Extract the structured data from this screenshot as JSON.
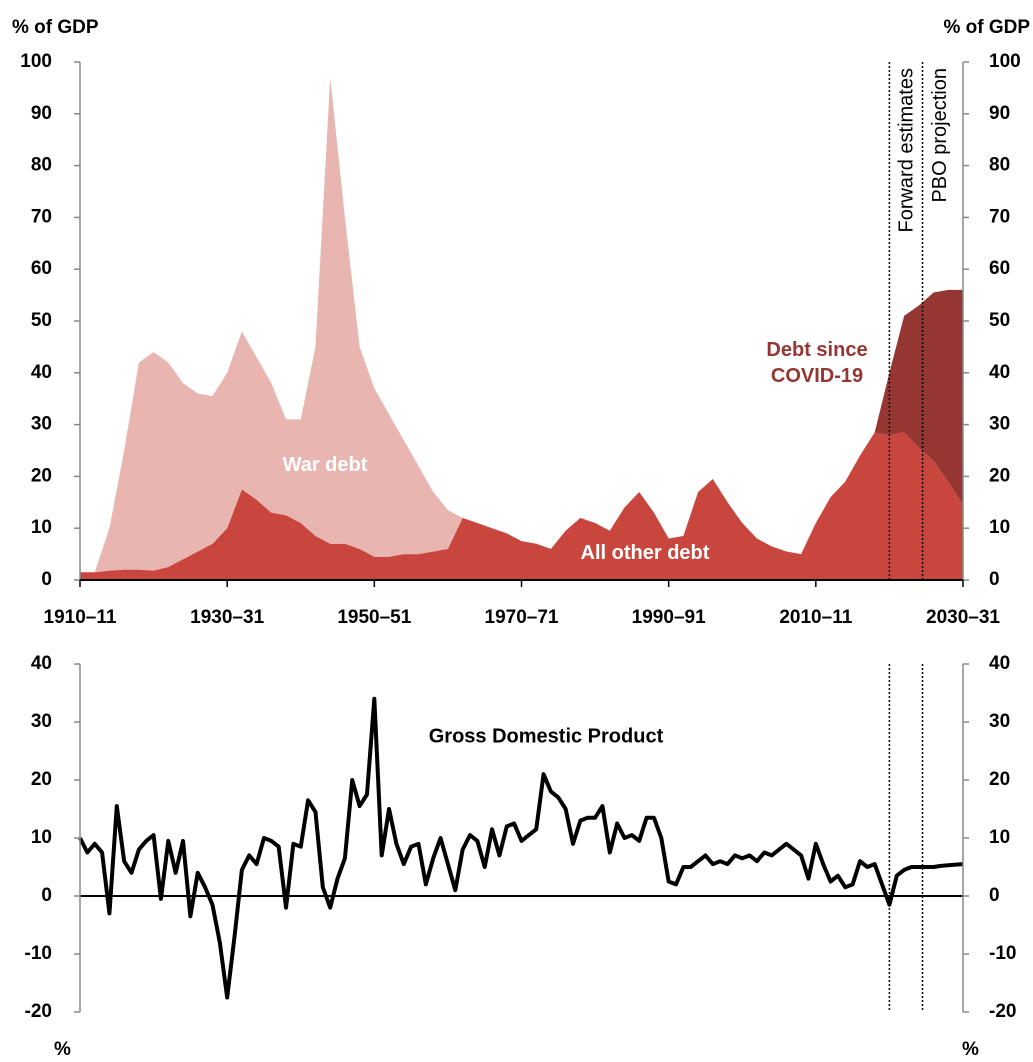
{
  "chart_data": [
    {
      "type": "area",
      "y_label": "% of GDP",
      "x": [
        1910,
        1912,
        1914,
        1916,
        1918,
        1920,
        1922,
        1924,
        1926,
        1928,
        1930,
        1932,
        1934,
        1936,
        1938,
        1940,
        1942,
        1944,
        1946,
        1948,
        1950,
        1952,
        1954,
        1956,
        1958,
        1960,
        1962,
        1964,
        1966,
        1968,
        1970,
        1972,
        1974,
        1976,
        1978,
        1980,
        1982,
        1984,
        1986,
        1988,
        1990,
        1992,
        1994,
        1996,
        1998,
        2000,
        2002,
        2004,
        2006,
        2008,
        2010,
        2012,
        2014,
        2016,
        2018,
        2020,
        2022,
        2024,
        2026,
        2028,
        2030
      ],
      "series": [
        {
          "name": "All other debt",
          "color": "#c8463e",
          "values": [
            1.5,
            1.5,
            1.8,
            2,
            2,
            1.8,
            2.5,
            4,
            5.5,
            7,
            10,
            17.5,
            15.5,
            13,
            12.5,
            11,
            8.5,
            7,
            7,
            6,
            4.5,
            4.5,
            5,
            5,
            5.5,
            6,
            12,
            11,
            10,
            9,
            7.5,
            7,
            6,
            9.5,
            12,
            11,
            9.5,
            14,
            17,
            13,
            8,
            8.5,
            17,
            19.5,
            15,
            11,
            8,
            6.5,
            5.5,
            5,
            11,
            16,
            19,
            24,
            28.5,
            28,
            28.5,
            25.5,
            23,
            19,
            14.5
          ]
        },
        {
          "name": "War debt",
          "color": "#e8b5b1",
          "values": [
            0,
            0,
            8.2,
            23,
            40,
            42.2,
            39.5,
            34,
            30.5,
            28.5,
            30,
            30.5,
            27.5,
            25,
            18.5,
            20,
            36.5,
            90,
            63,
            39,
            32.5,
            27.5,
            22,
            17,
            11.5,
            7.5,
            0,
            0,
            0,
            0,
            0,
            0,
            0,
            0,
            0,
            0,
            0,
            0,
            0,
            0,
            0,
            0,
            0,
            0,
            0,
            0,
            0,
            0,
            0,
            0,
            0,
            0,
            0,
            0,
            0,
            0,
            0,
            0,
            0,
            0,
            0
          ]
        },
        {
          "name": "Debt since COVID-19",
          "color": "#963632",
          "values": [
            0,
            0,
            0,
            0,
            0,
            0,
            0,
            0,
            0,
            0,
            0,
            0,
            0,
            0,
            0,
            0,
            0,
            0,
            0,
            0,
            0,
            0,
            0,
            0,
            0,
            0,
            0,
            0,
            0,
            0,
            0,
            0,
            0,
            0,
            0,
            0,
            0,
            0,
            0,
            0,
            0,
            0,
            0,
            0,
            0,
            0,
            0,
            0,
            0,
            0,
            0,
            0,
            0,
            0,
            0,
            12,
            22.5,
            27.5,
            32.5,
            37,
            41.5
          ]
        }
      ],
      "xlim": [
        1910,
        2030
      ],
      "xticks": [
        {
          "value": 1910,
          "label": "1910–11"
        },
        {
          "value": 1930,
          "label": "1930–31"
        },
        {
          "value": 1950,
          "label": "1950–51"
        },
        {
          "value": 1970,
          "label": "1970–71"
        },
        {
          "value": 1990,
          "label": "1990–91"
        },
        {
          "value": 2010,
          "label": "2010–11"
        },
        {
          "value": 2030,
          "label": "2030–31"
        }
      ],
      "ylim": [
        0,
        100
      ],
      "yticks": [
        0,
        10,
        20,
        30,
        40,
        50,
        60,
        70,
        80,
        90,
        100
      ],
      "y2lim": [
        0,
        100
      ],
      "y2ticks": [
        0,
        10,
        20,
        30,
        40,
        50,
        60,
        70,
        80,
        90,
        100
      ],
      "reference_lines": [
        {
          "x": 2020,
          "label": "Forward estimates"
        },
        {
          "x": 2024.5,
          "label": "PBO projection"
        }
      ]
    },
    {
      "type": "line",
      "y_label": "%",
      "x": [
        1910,
        1911,
        1912,
        1913,
        1914,
        1915,
        1916,
        1917,
        1918,
        1919,
        1920,
        1921,
        1922,
        1923,
        1924,
        1925,
        1926,
        1927,
        1928,
        1929,
        1930,
        1931,
        1932,
        1933,
        1934,
        1935,
        1936,
        1937,
        1938,
        1939,
        1940,
        1941,
        1942,
        1943,
        1944,
        1945,
        1946,
        1947,
        1948,
        1949,
        1950,
        1951,
        1952,
        1953,
        1954,
        1955,
        1956,
        1957,
        1958,
        1959,
        1960,
        1961,
        1962,
        1963,
        1964,
        1965,
        1966,
        1967,
        1968,
        1969,
        1970,
        1971,
        1972,
        1973,
        1974,
        1975,
        1976,
        1977,
        1978,
        1979,
        1980,
        1981,
        1982,
        1983,
        1984,
        1985,
        1986,
        1987,
        1988,
        1989,
        1990,
        1991,
        1992,
        1993,
        1994,
        1995,
        1996,
        1997,
        1998,
        1999,
        2000,
        2001,
        2002,
        2003,
        2004,
        2005,
        2006,
        2007,
        2008,
        2009,
        2010,
        2011,
        2012,
        2013,
        2014,
        2015,
        2016,
        2017,
        2018,
        2019,
        2020,
        2021,
        2022,
        2023,
        2024,
        2025,
        2026,
        2027,
        2028,
        2029,
        2030
      ],
      "series": [
        {
          "name": "Gross Domestic Product",
          "color": "#000000",
          "values": [
            10,
            7.5,
            9,
            7.5,
            -3,
            15.5,
            6,
            4,
            8,
            9.5,
            10.5,
            -0.5,
            9.5,
            4,
            9.5,
            -3.5,
            4,
            1.5,
            -1.5,
            -8,
            -17.5,
            -7,
            4.5,
            7,
            5.5,
            10,
            9.5,
            8.5,
            -2,
            9,
            8.5,
            16.5,
            14.5,
            1.5,
            -2,
            3,
            6.5,
            20,
            15.5,
            17.5,
            34,
            7,
            15,
            9,
            5.5,
            8.5,
            9,
            2,
            6.5,
            10,
            5.5,
            1,
            8,
            10.5,
            9.5,
            5,
            11.5,
            7,
            12,
            12.5,
            9.5,
            10.5,
            11.5,
            21,
            18,
            17,
            15,
            9,
            13,
            13.5,
            13.5,
            15.5,
            7.5,
            12.5,
            10,
            10.5,
            9.5,
            13.5,
            13.5,
            10,
            2.5,
            2,
            5,
            5,
            6,
            7,
            5.5,
            6,
            5.5,
            7,
            6.5,
            7,
            6,
            7.5,
            7,
            8,
            9,
            8,
            7,
            3,
            9,
            5.5,
            2.5,
            3.5,
            1.5,
            2,
            6,
            5,
            5.5,
            2,
            -1.5,
            3.5,
            4.5,
            5,
            5,
            5,
            5,
            5.2,
            5.3,
            5.4,
            5.5
          ]
        }
      ],
      "xlim": [
        1910,
        2030
      ],
      "ylim": [
        -20,
        40
      ],
      "yticks": [
        -20,
        -10,
        0,
        10,
        20,
        30,
        40
      ],
      "y2lim": [
        -20,
        40
      ],
      "y2ticks": [
        -20,
        -10,
        0,
        10,
        20,
        30,
        40
      ],
      "reference_lines": [
        2020,
        2024.5
      ]
    }
  ]
}
